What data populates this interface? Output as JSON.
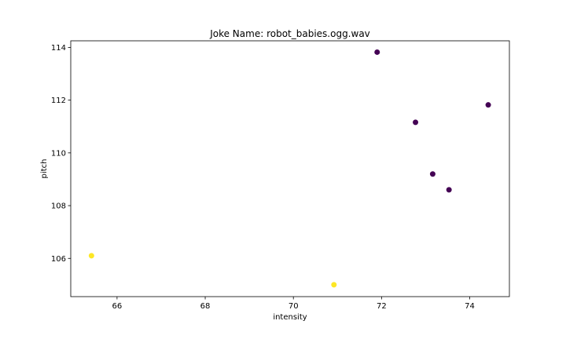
{
  "chart_data": {
    "type": "scatter",
    "title": "Joke Name: robot_babies.ogg.wav",
    "xlabel": "intensity",
    "ylabel": "pitch",
    "xlim": [
      64.95,
      74.9
    ],
    "ylim": [
      104.55,
      114.25
    ],
    "x_ticks": [
      66,
      68,
      70,
      72,
      74
    ],
    "y_ticks": [
      106,
      108,
      110,
      112,
      114
    ],
    "grid": false,
    "colors": {
      "purple": "#440154",
      "yellow": "#fde725"
    },
    "points": [
      {
        "x": 65.42,
        "y": 106.1,
        "color": "yellow"
      },
      {
        "x": 70.92,
        "y": 105.0,
        "color": "yellow"
      },
      {
        "x": 71.9,
        "y": 113.82,
        "color": "purple"
      },
      {
        "x": 72.77,
        "y": 111.16,
        "color": "purple"
      },
      {
        "x": 73.16,
        "y": 109.2,
        "color": "purple"
      },
      {
        "x": 73.53,
        "y": 108.6,
        "color": "purple"
      },
      {
        "x": 74.42,
        "y": 111.82,
        "color": "purple"
      }
    ]
  }
}
